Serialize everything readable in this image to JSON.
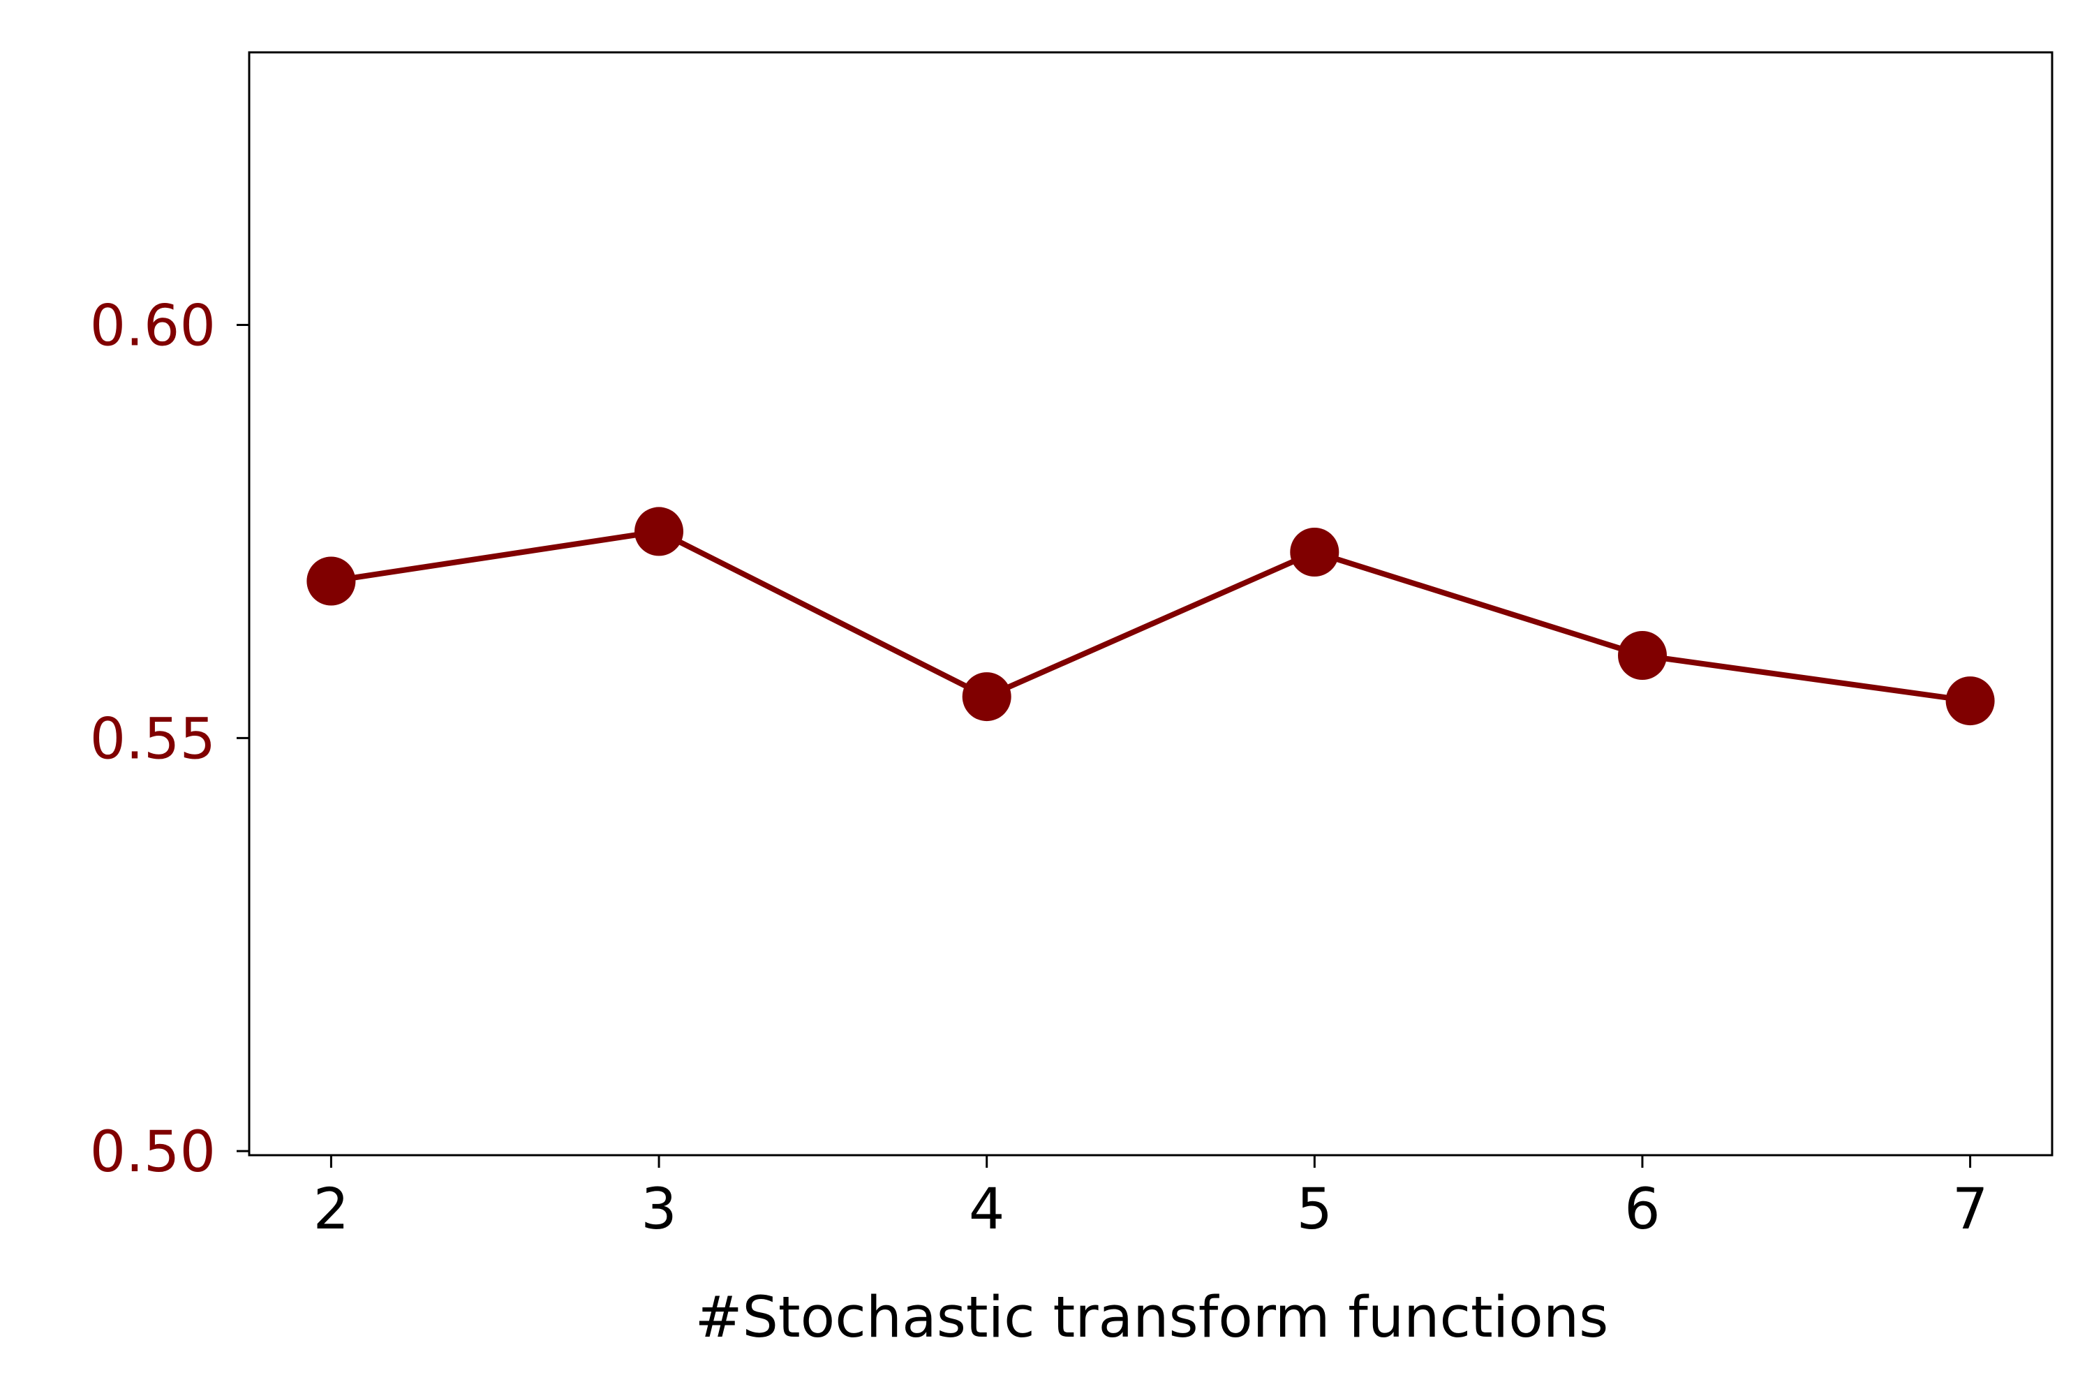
{
  "chart_data": {
    "type": "line",
    "title": "",
    "xlabel": "#Stochastic transform functions",
    "ylabel": "",
    "x": [
      2,
      3,
      4,
      5,
      6,
      7
    ],
    "series": [
      {
        "values": [
          0.569,
          0.575,
          0.555,
          0.5725,
          0.56,
          0.5545
        ]
      }
    ],
    "xlim": [
      1.75,
      7.25
    ],
    "ylim": [
      0.4995,
      0.633
    ],
    "xticks": [
      "2",
      "3",
      "4",
      "5",
      "6",
      "7"
    ],
    "yticks": [
      "0.50",
      "0.55",
      "0.60"
    ],
    "grid": false,
    "legend": false,
    "colors": {
      "series": "#800000",
      "ytick_labels": "#800000",
      "axes": "#000000"
    },
    "marker": "filled-circle"
  }
}
